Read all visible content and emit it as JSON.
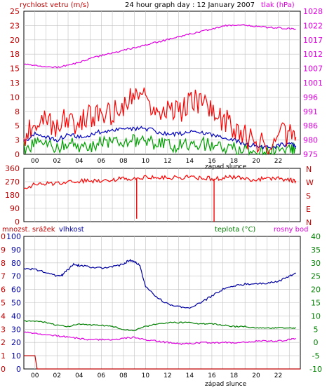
{
  "header": {
    "wind_label": "rychlost vetru (m/s)",
    "title": "24 hour graph day : 12 January 2007",
    "pressure_label": "tlak (hPa)"
  },
  "middle": {
    "sunset_label": "západ slunce"
  },
  "lower": {
    "rain_label": "mnozst. srážek",
    "humidity_label": "vlhkost",
    "temp_label": "teplota (°C)",
    "dew_label": "rosny bod",
    "sunset_label": "západ slunce"
  },
  "colors": {
    "frame": "#000000",
    "grid": "#c0c0c0",
    "wind": "#ff0000",
    "wind_avg": "#00a000",
    "gust_blue": "#0000c0",
    "pressure": "#e000e0",
    "humidity": "#0000a0",
    "temperature": "#008000",
    "dew": "#e000e0",
    "rain": "#c00000",
    "left_axis": "#c00000",
    "right_axis_top": "#e000e0",
    "right_axis_bottom": "#008000",
    "background": "#ffffff"
  },
  "chart_data": [
    {
      "type": "line",
      "name": "wind_pressure",
      "x_ticks": [
        "00",
        "02",
        "04",
        "06",
        "08",
        "10",
        "12",
        "14",
        "16",
        "18",
        "20",
        "22"
      ],
      "x_range_hours": [
        -1,
        24
      ],
      "ylim_left": [
        0,
        25
      ],
      "y_ticks_left": [
        "0",
        "3",
        "5",
        "8",
        "10",
        "13",
        "15",
        "18",
        "20",
        "23",
        "25"
      ],
      "ylim_right": [
        975,
        1028
      ],
      "y_ticks_right": [
        "975",
        "980",
        "986",
        "991",
        "996",
        "1001",
        "1007",
        "1012",
        "1017",
        "1022",
        "1028"
      ],
      "series": [
        {
          "key": "gust",
          "hours": [
            -1,
            0,
            1,
            2,
            3,
            4,
            5,
            6,
            7,
            8,
            9,
            10,
            11,
            12,
            13,
            14,
            15,
            16,
            17,
            18,
            19,
            20,
            21,
            22,
            23,
            23.6
          ],
          "values": [
            3,
            5.5,
            6,
            4.5,
            6.5,
            5,
            7,
            6.5,
            7,
            8.5,
            10,
            10,
            8,
            7.5,
            7,
            9,
            9.5,
            7,
            6,
            5,
            3,
            2.5,
            2,
            3.5,
            3.5,
            3
          ]
        },
        {
          "key": "mean",
          "hours": [
            -1,
            0,
            1,
            2,
            3,
            4,
            5,
            6,
            7,
            8,
            9,
            10,
            11,
            12,
            13,
            14,
            15,
            16,
            17,
            18,
            19,
            20,
            21,
            22,
            23,
            23.6
          ],
          "values": [
            2,
            3.5,
            3,
            2.5,
            3.5,
            3,
            3.5,
            4,
            4,
            4.5,
            4.5,
            4.5,
            4,
            3.5,
            3.5,
            4,
            4,
            3.5,
            3,
            2.5,
            1.8,
            1.5,
            1.2,
            1.5,
            1.8,
            1.5
          ]
        },
        {
          "key": "low",
          "hours": [
            -1,
            0,
            1,
            2,
            3,
            4,
            5,
            6,
            7,
            8,
            9,
            10,
            11,
            12,
            13,
            14,
            15,
            16,
            17,
            18,
            19,
            20,
            21,
            22,
            23,
            23.6
          ],
          "values": [
            1,
            2,
            1.5,
            1,
            2,
            1.5,
            1.5,
            2,
            2,
            2.5,
            2.5,
            2,
            2,
            1.5,
            1.5,
            2,
            2,
            1.5,
            1.5,
            1,
            0.8,
            0.5,
            0.5,
            0.8,
            1,
            1
          ]
        },
        {
          "key": "pressure",
          "hours": [
            -1,
            0,
            1,
            2,
            3,
            4,
            5,
            6,
            7,
            8,
            9,
            10,
            11,
            12,
            13,
            14,
            15,
            16,
            17,
            18,
            19,
            20,
            21,
            22,
            23,
            23.6
          ],
          "values": [
            1008.5,
            1008,
            1007.5,
            1007.2,
            1008,
            1009,
            1010.5,
            1011.5,
            1012.5,
            1013.5,
            1014.5,
            1015.5,
            1016.5,
            1017.5,
            1018.5,
            1019.5,
            1020.5,
            1021.5,
            1022.5,
            1023,
            1022.8,
            1022.4,
            1022,
            1021.8,
            1021.5,
            1021.3
          ]
        }
      ]
    },
    {
      "type": "line",
      "name": "wind_direction",
      "x_range_hours": [
        -1,
        24
      ],
      "ylim": [
        0,
        360
      ],
      "y_ticks_left": [
        "0",
        "90",
        "180",
        "270",
        "360"
      ],
      "y_ticks_right": [
        "N",
        "E",
        "S",
        "W",
        "N"
      ],
      "direction_hours": [
        -1,
        0,
        1,
        2,
        3,
        4,
        5,
        6,
        7,
        8,
        9,
        10,
        11,
        12,
        13,
        14,
        15,
        16,
        17,
        18,
        19,
        20,
        21,
        22,
        23,
        23.6
      ],
      "direction_values": [
        230,
        250,
        255,
        260,
        270,
        275,
        275,
        280,
        285,
        290,
        295,
        300,
        300,
        295,
        300,
        300,
        295,
        290,
        295,
        300,
        290,
        285,
        290,
        295,
        280,
        275
      ],
      "spikes_hours": [
        9.2,
        16.2
      ],
      "spikes_values": [
        20,
        0
      ]
    },
    {
      "type": "line",
      "name": "humidity_temp",
      "x_ticks": [
        "00",
        "02",
        "04",
        "06",
        "08",
        "10",
        "12",
        "14",
        "16",
        "18",
        "20",
        "22"
      ],
      "x_range_hours": [
        -1,
        24
      ],
      "ylim_humidity": [
        0,
        100
      ],
      "y_ticks_rain": [
        "0",
        "1",
        "2",
        "3",
        "4",
        "5",
        "6",
        "7",
        "8",
        "9",
        "10"
      ],
      "y_ticks_humidity": [
        "0",
        "10",
        "20",
        "30",
        "40",
        "50",
        "60",
        "70",
        "80",
        "90",
        "100"
      ],
      "ylim_temp": [
        -10,
        40
      ],
      "y_ticks_temp": [
        "-10",
        "-5",
        "0",
        "5",
        "10",
        "15",
        "20",
        "25",
        "30",
        "35",
        "40"
      ],
      "series": [
        {
          "key": "humidity",
          "hours": [
            -1,
            0,
            1,
            2,
            2.5,
            3,
            3.5,
            4,
            5,
            6,
            7,
            8,
            8.5,
            9,
            9.5,
            10,
            11,
            12,
            13,
            14,
            15,
            16,
            17,
            18,
            19,
            20,
            21,
            22,
            23,
            23.6
          ],
          "values": [
            76,
            75,
            73,
            70,
            71,
            75,
            79,
            78,
            77,
            76,
            77,
            79,
            82,
            81,
            78,
            62,
            54,
            49,
            47,
            46,
            50,
            55,
            60,
            63,
            64,
            64,
            65,
            66,
            70,
            72
          ]
        },
        {
          "key": "temperature",
          "hours": [
            -1,
            0,
            1,
            2,
            3,
            4,
            5,
            6,
            7,
            8,
            9,
            10,
            11,
            12,
            13,
            14,
            15,
            16,
            17,
            18,
            19,
            20,
            21,
            22,
            23,
            23.6
          ],
          "values": [
            8,
            8,
            7.5,
            6.5,
            6,
            7,
            6.5,
            6.5,
            6,
            5,
            4.5,
            6,
            7,
            7.5,
            7.5,
            7.5,
            7,
            7,
            6.5,
            6,
            6,
            5.5,
            5.5,
            5.5,
            5.5,
            5.5
          ]
        },
        {
          "key": "dew_point",
          "hours": [
            -1,
            0,
            1,
            2,
            3,
            4,
            5,
            6,
            7,
            8,
            9,
            10,
            11,
            12,
            13,
            14,
            15,
            16,
            17,
            18,
            19,
            20,
            21,
            22,
            23,
            23.6
          ],
          "values": [
            4,
            3.5,
            3,
            2.5,
            2,
            1.5,
            1,
            1,
            1,
            1.5,
            2,
            1,
            0.5,
            0,
            -0.5,
            -0.5,
            0,
            0,
            0,
            0,
            0,
            0.5,
            0.5,
            0.5,
            1,
            1.5
          ]
        },
        {
          "key": "rain",
          "hours": [
            -1,
            0,
            0.2,
            24
          ],
          "values": [
            1,
            1,
            0,
            0
          ]
        }
      ]
    }
  ]
}
